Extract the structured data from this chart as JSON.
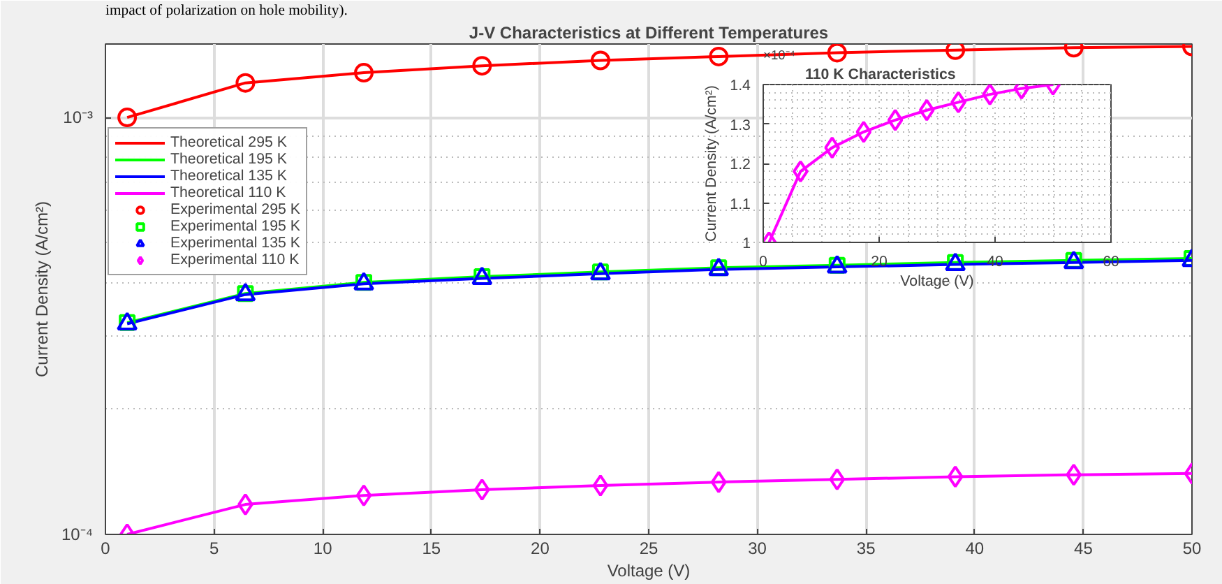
{
  "chart_data": [
    {
      "type": "line",
      "title": "J-V Characteristics at Different Temperatures",
      "xlabel": "Voltage (V)",
      "ylabel": "Current Density (A/cm²)",
      "annotations": [
        "impact of polarization on hole mobility)."
      ],
      "log": "y",
      "xlim": [
        0,
        50
      ],
      "ylim": [
        0.0001,
        0.0015
      ],
      "xticks": [
        0,
        5,
        10,
        15,
        20,
        25,
        30,
        35,
        40,
        45,
        50
      ],
      "yticks": [
        {
          "value": 0.0001,
          "label": "10⁻⁴"
        },
        {
          "value": 0.001,
          "label": "10⁻³"
        }
      ],
      "grid": true,
      "legend": "top left",
      "x": [
        1,
        6.44,
        11.89,
        17.33,
        22.78,
        28.22,
        33.67,
        39.11,
        44.56,
        50
      ],
      "series": [
        {
          "name": "Theoretical 295 K",
          "color": "#ff0000",
          "marker": "none",
          "values": [
            0.001,
            0.00121,
            0.00128,
            0.00133,
            0.00137,
            0.0014,
            0.00143,
            0.00145,
            0.00147,
            0.00148
          ]
        },
        {
          "name": "Theoretical 195 K",
          "color": "#00ff00",
          "marker": "none",
          "values": [
            0.000322,
            0.000378,
            0.000402,
            0.000415,
            0.000426,
            0.000436,
            0.000442,
            0.000449,
            0.000454,
            0.000459
          ]
        },
        {
          "name": "Theoretical 135 K",
          "color": "#0000ff",
          "marker": "none",
          "values": [
            0.00032,
            0.000376,
            0.000399,
            0.000411,
            0.000422,
            0.000432,
            0.000438,
            0.000444,
            0.000449,
            0.000454
          ]
        },
        {
          "name": "Theoretical 110 K",
          "color": "#ff00ff",
          "marker": "none",
          "values": [
            0.0001,
            0.000118,
            0.000124,
            0.000128,
            0.000131,
            0.0001335,
            0.0001355,
            0.0001375,
            0.000139,
            0.00014
          ]
        },
        {
          "name": "Experimental 295 K",
          "type": "scatter",
          "color": "#ff0000",
          "marker": "circle",
          "values": [
            0.001,
            0.00121,
            0.00128,
            0.00133,
            0.00137,
            0.0014,
            0.00143,
            0.00145,
            0.00147,
            0.00148
          ]
        },
        {
          "name": "Experimental 195 K",
          "type": "scatter",
          "color": "#00ff00",
          "marker": "square",
          "values": [
            0.000322,
            0.000378,
            0.000402,
            0.000415,
            0.000426,
            0.000436,
            0.000442,
            0.000449,
            0.000454,
            0.000459
          ]
        },
        {
          "name": "Experimental 135 K",
          "type": "scatter",
          "color": "#0000ff",
          "marker": "triangle",
          "values": [
            0.00032,
            0.000376,
            0.000399,
            0.000411,
            0.000422,
            0.000432,
            0.000438,
            0.000444,
            0.000449,
            0.000454
          ]
        },
        {
          "name": "Experimental 110 K",
          "type": "scatter",
          "color": "#ff00ff",
          "marker": "diamond",
          "values": [
            0.0001,
            0.000118,
            0.000124,
            0.000128,
            0.000131,
            0.0001335,
            0.0001355,
            0.0001375,
            0.000139,
            0.00014
          ]
        }
      ]
    },
    {
      "type": "line",
      "title": "110 K Characteristics",
      "xlabel": "Voltage (V)",
      "ylabel": "Current Density (A/cm²)",
      "annotations": [
        "×10⁻⁴"
      ],
      "xlim": [
        0,
        60
      ],
      "ylim": [
        1,
        1.4
      ],
      "xticks": [
        0,
        20,
        40,
        60
      ],
      "yticks": [
        1,
        1.1,
        1.2,
        1.3,
        1.4
      ],
      "grid": true,
      "x": [
        1,
        6.44,
        11.89,
        17.33,
        22.78,
        28.22,
        33.67,
        39.11,
        44.56,
        50
      ],
      "series": [
        {
          "color": "#ff00ff",
          "marker": "none",
          "values": [
            1.0,
            1.18,
            1.24,
            1.28,
            1.31,
            1.335,
            1.355,
            1.375,
            1.39,
            1.4
          ]
        },
        {
          "type": "scatter",
          "color": "#ff00ff",
          "marker": "diamond",
          "values": [
            1.0,
            1.18,
            1.24,
            1.28,
            1.31,
            1.335,
            1.355,
            1.375,
            1.39,
            1.4
          ]
        }
      ]
    }
  ]
}
